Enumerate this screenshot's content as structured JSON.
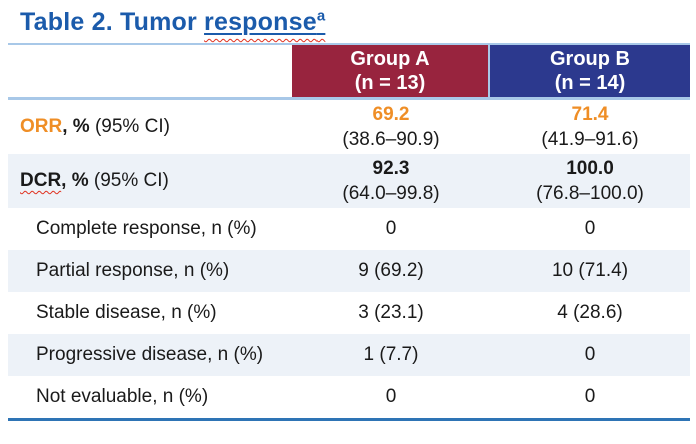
{
  "title": {
    "prefix": "Table 2. Tumor ",
    "underlined_word": "response",
    "superscript": "a"
  },
  "header": {
    "group_a": {
      "name": "Group A",
      "n": "(n = 13)"
    },
    "group_b": {
      "name": "Group B",
      "n": "(n = 14)"
    }
  },
  "rows": {
    "orr": {
      "label_acronym": "ORR",
      "label_bold": ", %",
      "label_rest": " (95% CI)",
      "a_value": "69.2",
      "a_ci": "(38.6–90.9)",
      "b_value": "71.4",
      "b_ci": "(41.9–91.6)"
    },
    "dcr": {
      "label_acronym": "DCR",
      "label_bold": ", %",
      "label_rest": " (95% CI)",
      "a_value": "92.3",
      "a_ci": "(64.0–99.8)",
      "b_value": "100.0",
      "b_ci": "(76.8–100.0)"
    },
    "complete_response": {
      "label": "Complete response, n (%)",
      "a": "0",
      "b": "0"
    },
    "partial_response": {
      "label": "Partial response, n (%)",
      "a": "9 (69.2)",
      "b": "10 (71.4)"
    },
    "stable_disease": {
      "label": "Stable disease, n (%)",
      "a": "3 (23.1)",
      "b": "4 (28.6)"
    },
    "progressive_disease": {
      "label": "Progressive disease, n (%)",
      "a": "1 (7.7)",
      "b": "0"
    },
    "not_evaluable": {
      "label": "Not evaluable, n (%)",
      "a": "0",
      "b": "0"
    }
  },
  "colors": {
    "title_blue": "#1B5BAB",
    "group_a_bg": "#98243E",
    "group_b_bg": "#2C398E",
    "line_light_blue": "#A8C8E8",
    "row_alt_bg": "#EDF2F8",
    "bottom_line_blue": "#2E74B5",
    "orr_orange": "#EF8E26",
    "squiggle_red": "#E0301E"
  }
}
